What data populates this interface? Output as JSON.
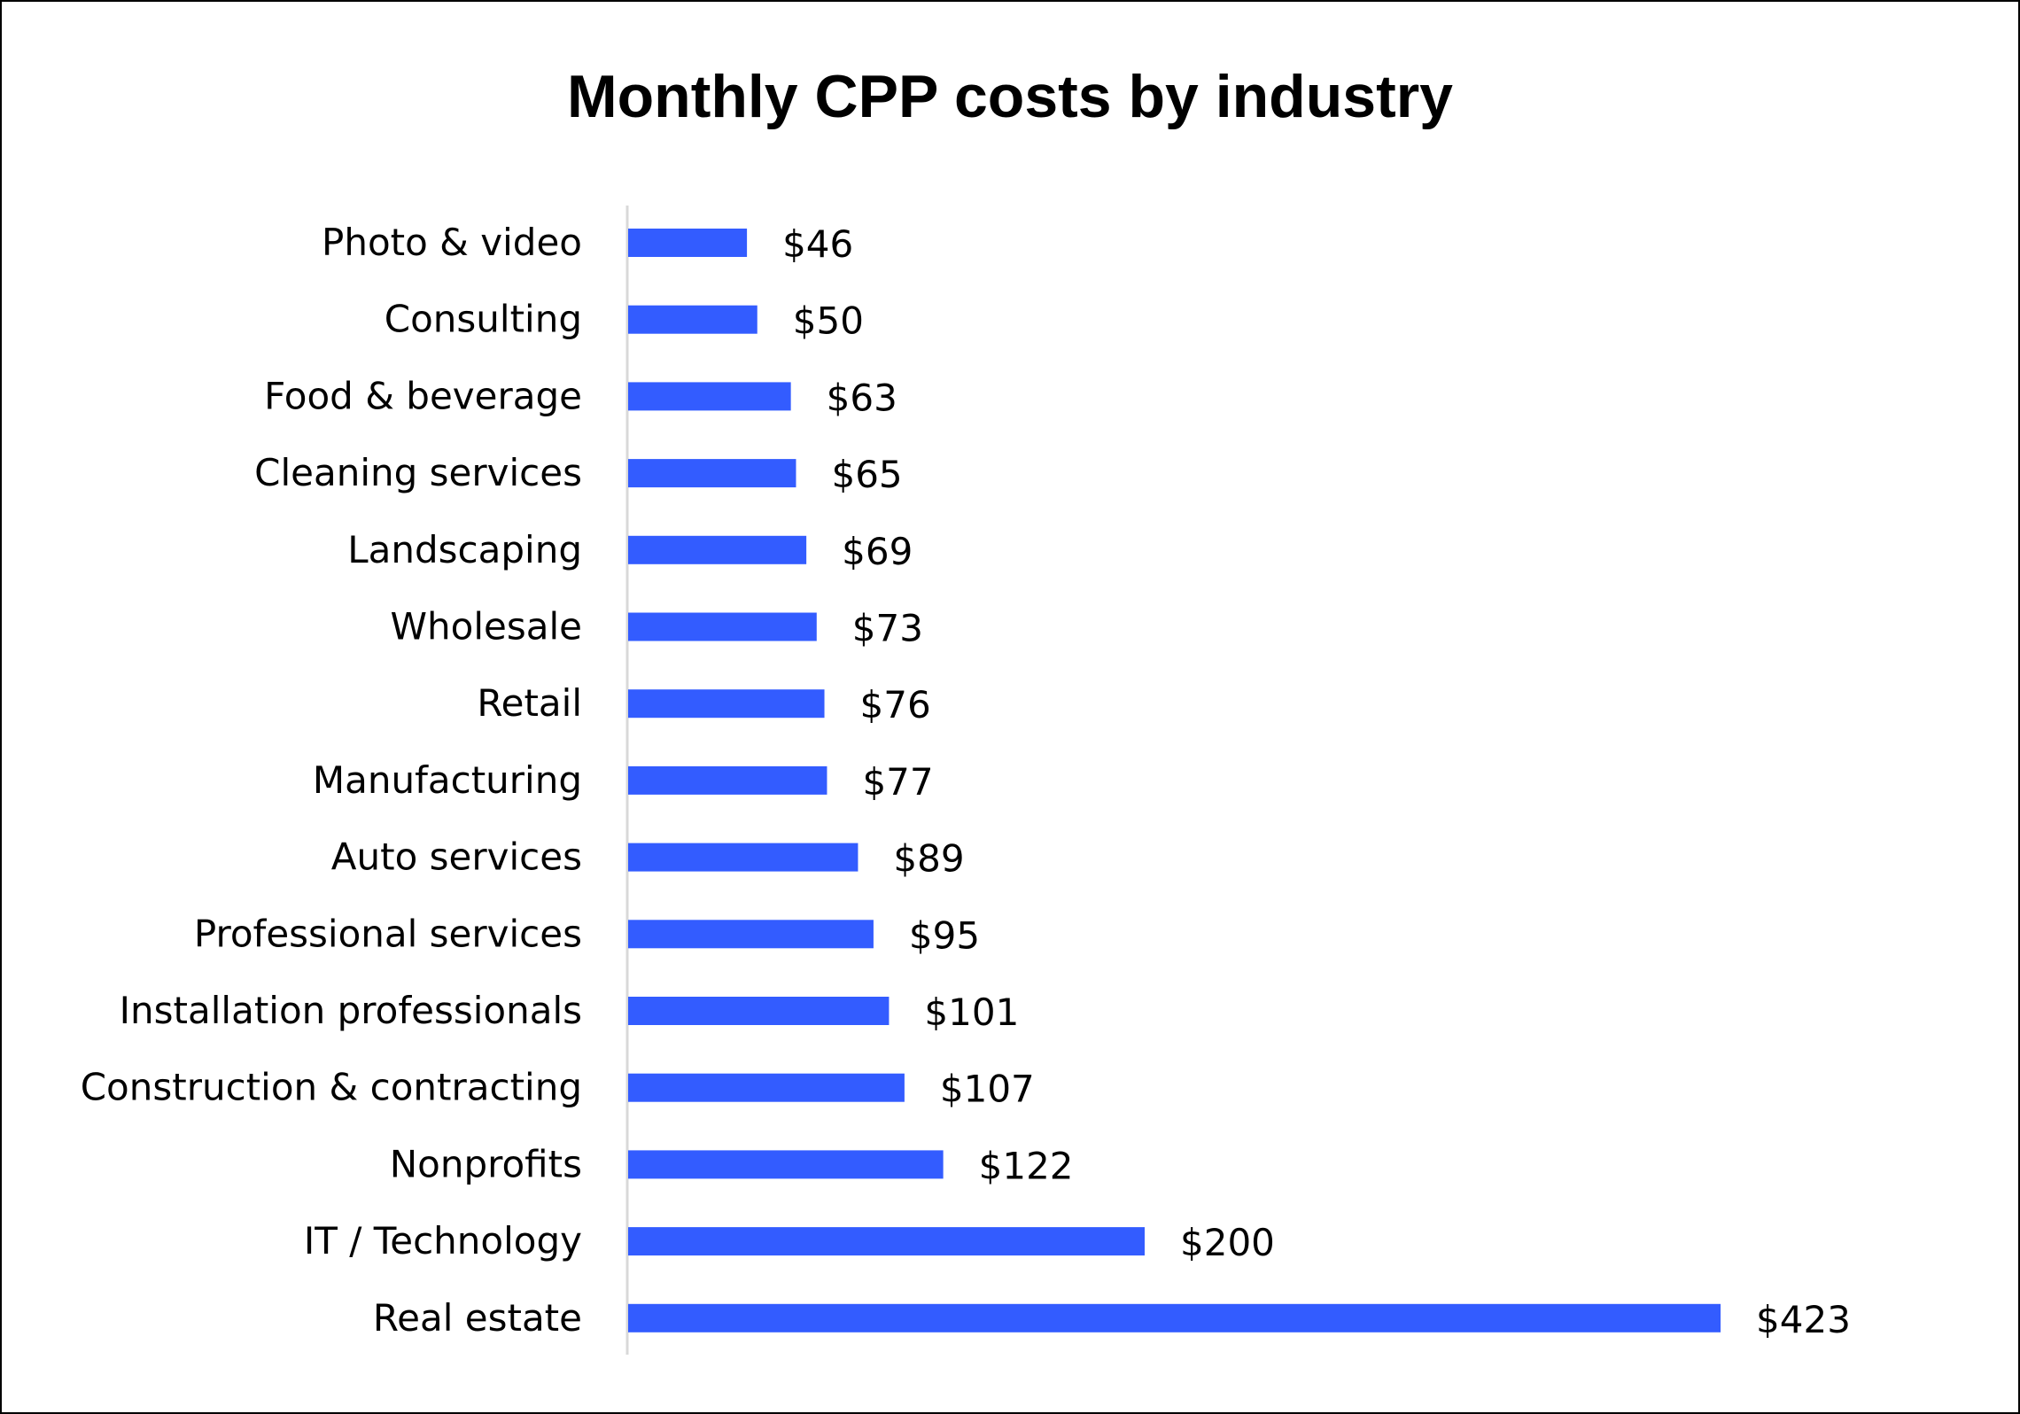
{
  "chart_data": {
    "type": "bar",
    "orientation": "horizontal",
    "title": "Monthly CPP costs by industry",
    "xlabel": "",
    "ylabel": "",
    "grid": false,
    "legend": "none",
    "bar_color": "#335CFF",
    "xlim": [
      0,
      423
    ],
    "categories": [
      "Photo & video",
      "Consulting",
      "Food & beverage",
      "Cleaning services",
      "Landscaping",
      "Wholesale",
      "Retail",
      "Manufacturing",
      "Auto services",
      "Professional services",
      "Installation professionals",
      "Construction & contracting",
      "Nonprofits",
      "IT / Technology",
      "Real estate"
    ],
    "values": [
      46,
      50,
      63,
      65,
      69,
      73,
      76,
      77,
      89,
      95,
      101,
      107,
      122,
      200,
      423
    ],
    "data_labels": [
      "$46",
      "$50",
      "$63",
      "$65",
      "$69",
      "$73",
      "$76",
      "$77",
      "$89",
      "$95",
      "$101",
      "$107",
      "$122",
      "$200",
      "$423"
    ]
  }
}
